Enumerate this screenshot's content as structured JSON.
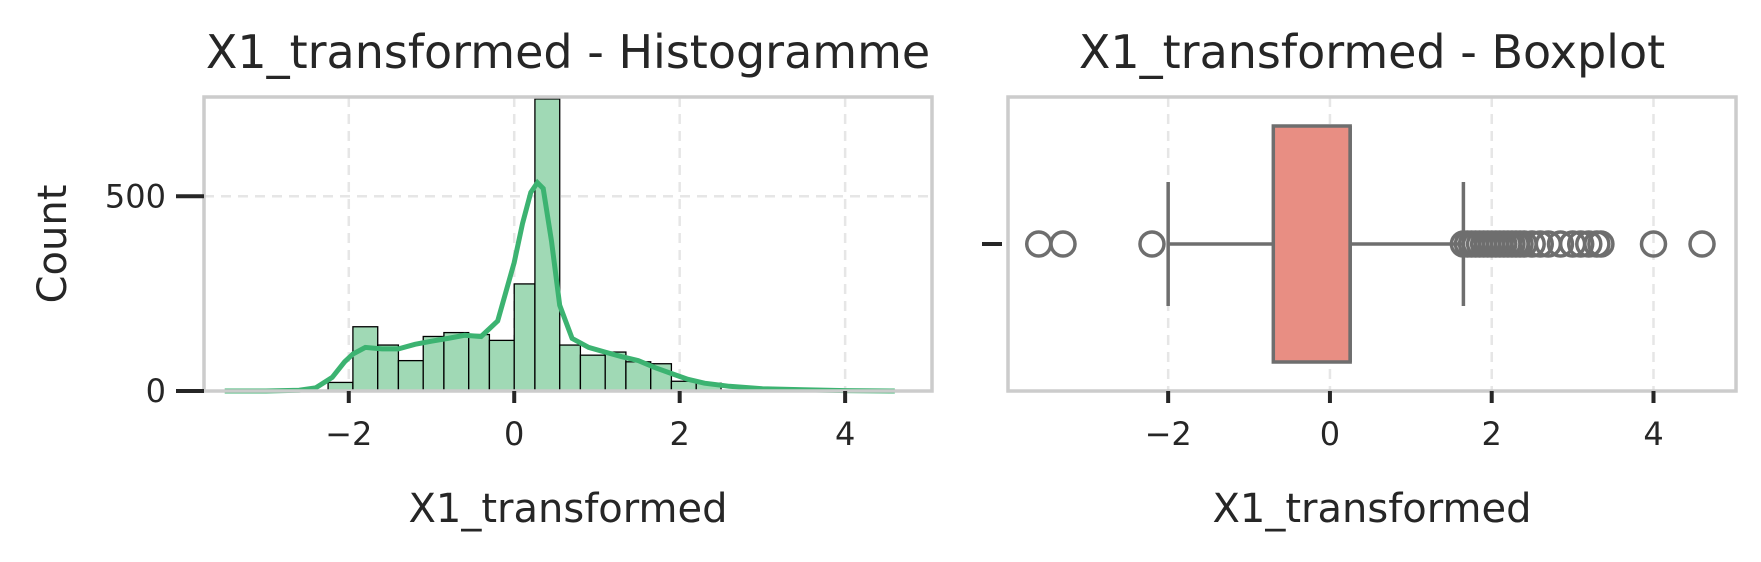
{
  "chart_data": [
    {
      "type": "bar",
      "subtype": "histogram-with-kde",
      "title": "X1_transformed - Histogramme",
      "xlabel": "X1_transformed",
      "ylabel": "Count",
      "xlim": [
        -3.75,
        5.05
      ],
      "ylim": [
        0,
        755
      ],
      "xticks": [
        -2,
        0,
        2,
        4
      ],
      "xtick_labels": [
        "−2",
        "0",
        "2",
        "4"
      ],
      "yticks": [
        0,
        500
      ],
      "ytick_labels": [
        "0",
        "500"
      ],
      "grid": true,
      "bar_color": "#a0d9b5",
      "bar_edge_color": "#000000",
      "kde_color": "#3cb371",
      "bins": [
        {
          "x0": -2.25,
          "x1": -1.95,
          "count": 22
        },
        {
          "x0": -1.95,
          "x1": -1.65,
          "count": 165
        },
        {
          "x0": -1.65,
          "x1": -1.4,
          "count": 118
        },
        {
          "x0": -1.4,
          "x1": -1.1,
          "count": 78
        },
        {
          "x0": -1.1,
          "x1": -0.85,
          "count": 140
        },
        {
          "x0": -0.85,
          "x1": -0.55,
          "count": 150
        },
        {
          "x0": -0.55,
          "x1": -0.3,
          "count": 145
        },
        {
          "x0": -0.3,
          "x1": 0.0,
          "count": 130
        },
        {
          "x0": 0.0,
          "x1": 0.25,
          "count": 275
        },
        {
          "x0": 0.25,
          "x1": 0.55,
          "count": 750
        },
        {
          "x0": 0.55,
          "x1": 0.8,
          "count": 118
        },
        {
          "x0": 0.8,
          "x1": 1.1,
          "count": 92
        },
        {
          "x0": 1.1,
          "x1": 1.35,
          "count": 100
        },
        {
          "x0": 1.35,
          "x1": 1.65,
          "count": 75
        },
        {
          "x0": 1.65,
          "x1": 1.9,
          "count": 70
        },
        {
          "x0": 1.9,
          "x1": 2.2,
          "count": 25
        },
        {
          "x0": 2.2,
          "x1": 2.5,
          "count": 20
        }
      ],
      "kde": {
        "x": [
          -3.5,
          -3.0,
          -2.6,
          -2.4,
          -2.2,
          -2.05,
          -1.95,
          -1.8,
          -1.6,
          -1.4,
          -1.2,
          -1.0,
          -0.8,
          -0.6,
          -0.4,
          -0.2,
          0.0,
          0.1,
          0.2,
          0.28,
          0.35,
          0.45,
          0.55,
          0.7,
          0.9,
          1.1,
          1.3,
          1.5,
          1.7,
          1.9,
          2.1,
          2.3,
          2.6,
          3.0,
          3.5,
          4.0,
          4.6
        ],
        "y": [
          0,
          0,
          2,
          8,
          35,
          75,
          95,
          112,
          108,
          108,
          120,
          128,
          135,
          143,
          140,
          180,
          330,
          430,
          510,
          535,
          520,
          385,
          220,
          135,
          112,
          100,
          88,
          78,
          60,
          45,
          30,
          20,
          12,
          6,
          3,
          1,
          0
        ]
      }
    },
    {
      "type": "box",
      "title": "X1_transformed - Boxplot",
      "xlabel": "X1_transformed",
      "ylabel": "",
      "xlim": [
        -3.98,
        5.02
      ],
      "xticks": [
        -2,
        0,
        2,
        4
      ],
      "xtick_labels": [
        "−2",
        "0",
        "2",
        "4"
      ],
      "grid": true,
      "box_color": "#e88e83",
      "line_color": "#6e6e6e",
      "whisker_low": -2.0,
      "q1": -0.7,
      "median": 0.25,
      "q3": 0.25,
      "whisker_high": 1.65,
      "outliers": [
        -3.6,
        -3.3,
        -2.2,
        1.65,
        1.7,
        1.75,
        1.8,
        1.85,
        1.9,
        1.95,
        2.0,
        2.05,
        2.1,
        2.15,
        2.2,
        2.25,
        2.3,
        2.35,
        2.4,
        2.5,
        2.6,
        2.7,
        2.85,
        3.0,
        3.1,
        3.2,
        3.3,
        3.35,
        4.0,
        4.6
      ]
    }
  ]
}
